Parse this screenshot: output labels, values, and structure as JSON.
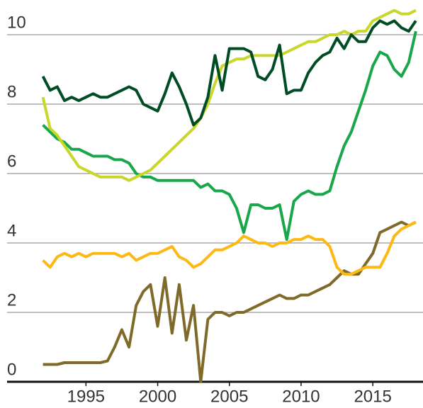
{
  "chart_data": {
    "type": "line",
    "x": [
      1992,
      1992.5,
      1993,
      1993.5,
      1994,
      1994.5,
      1995,
      1995.5,
      1996,
      1996.5,
      1997,
      1997.5,
      1998,
      1998.5,
      1999,
      1999.5,
      2000,
      2000.5,
      2001,
      2001.5,
      2002,
      2002.5,
      2003,
      2003.5,
      2004,
      2004.5,
      2005,
      2005.5,
      2006,
      2006.5,
      2007,
      2007.5,
      2008,
      2008.5,
      2009,
      2009.5,
      2010,
      2010.5,
      2011,
      2011.5,
      2012,
      2012.5,
      2013,
      2013.5,
      2014,
      2014.5,
      2015,
      2015.5,
      2016,
      2016.5,
      2017,
      2017.5,
      2018
    ],
    "series": [
      {
        "color": "#7f6a2a",
        "values": [
          0.5,
          0.5,
          0.5,
          0.55,
          0.55,
          0.55,
          0.55,
          0.55,
          0.55,
          0.6,
          1.0,
          1.5,
          1.0,
          2.2,
          2.6,
          2.8,
          1.6,
          3.0,
          1.4,
          2.8,
          1.2,
          2.2,
          0.0,
          1.8,
          2.0,
          2.0,
          1.9,
          2.0,
          2.0,
          2.1,
          2.2,
          2.3,
          2.4,
          2.5,
          2.4,
          2.4,
          2.5,
          2.5,
          2.6,
          2.7,
          2.8,
          3.0,
          3.2,
          3.1,
          3.1,
          3.4,
          3.7,
          4.3,
          4.4,
          4.5,
          4.6,
          4.5,
          4.6
        ]
      },
      {
        "color": "#fdb913",
        "values": [
          3.5,
          3.3,
          3.6,
          3.7,
          3.6,
          3.7,
          3.6,
          3.7,
          3.7,
          3.7,
          3.7,
          3.6,
          3.7,
          3.5,
          3.6,
          3.7,
          3.7,
          3.8,
          3.9,
          3.6,
          3.5,
          3.3,
          3.4,
          3.6,
          3.8,
          3.8,
          3.9,
          4.0,
          4.2,
          4.1,
          4.0,
          4.0,
          3.9,
          4.0,
          4.0,
          4.1,
          4.1,
          4.2,
          4.1,
          4.1,
          3.9,
          3.3,
          3.1,
          3.1,
          3.2,
          3.3,
          3.3,
          3.3,
          3.7,
          4.2,
          4.4,
          4.5,
          4.6
        ]
      },
      {
        "color": "#1aa64a",
        "values": [
          7.4,
          7.2,
          7.0,
          6.9,
          6.7,
          6.7,
          6.6,
          6.5,
          6.5,
          6.5,
          6.4,
          6.4,
          6.3,
          6.0,
          5.9,
          5.9,
          5.8,
          5.8,
          5.8,
          5.8,
          5.8,
          5.8,
          5.6,
          5.7,
          5.5,
          5.5,
          5.4,
          5.0,
          4.3,
          5.1,
          5.1,
          5.0,
          5.0,
          5.1,
          4.1,
          5.2,
          5.4,
          5.5,
          5.4,
          5.4,
          5.5,
          6.2,
          6.8,
          7.2,
          7.8,
          8.4,
          9.1,
          9.5,
          9.4,
          9.0,
          8.8,
          9.2,
          10.1
        ]
      },
      {
        "color": "#c8d72a",
        "values": [
          8.2,
          7.3,
          7.1,
          6.8,
          6.5,
          6.2,
          6.1,
          6.0,
          5.9,
          5.9,
          5.9,
          5.9,
          5.8,
          5.9,
          6.0,
          6.1,
          6.3,
          6.5,
          6.7,
          6.9,
          7.1,
          7.3,
          7.6,
          8.0,
          8.6,
          9.1,
          9.2,
          9.3,
          9.3,
          9.4,
          9.4,
          9.4,
          9.4,
          9.4,
          9.5,
          9.6,
          9.7,
          9.8,
          9.8,
          9.9,
          10.0,
          10.0,
          10.1,
          10.0,
          10.1,
          10.1,
          10.4,
          10.5,
          10.6,
          10.7,
          10.6,
          10.6,
          10.7
        ]
      },
      {
        "color": "#004d25",
        "values": [
          8.8,
          8.4,
          8.5,
          8.1,
          8.2,
          8.1,
          8.2,
          8.3,
          8.2,
          8.2,
          8.3,
          8.4,
          8.5,
          8.4,
          8.0,
          7.9,
          7.8,
          8.3,
          8.9,
          8.5,
          8.0,
          7.4,
          7.6,
          8.2,
          9.4,
          8.4,
          9.6,
          9.6,
          9.6,
          9.5,
          8.8,
          8.7,
          9.0,
          9.7,
          8.3,
          8.4,
          8.4,
          8.9,
          9.2,
          9.4,
          9.5,
          9.9,
          9.6,
          10.0,
          9.8,
          9.8,
          10.2,
          10.4,
          10.3,
          10.4,
          10.2,
          10.1,
          10.4
        ]
      }
    ],
    "xlim": [
      1989.5,
      2018.5
    ],
    "xticks": [
      1995,
      2000,
      2005,
      2010,
      2015
    ],
    "ylim": [
      0,
      11
    ],
    "yticks": [
      0,
      2,
      4,
      6,
      8,
      10
    ],
    "grid": true
  }
}
